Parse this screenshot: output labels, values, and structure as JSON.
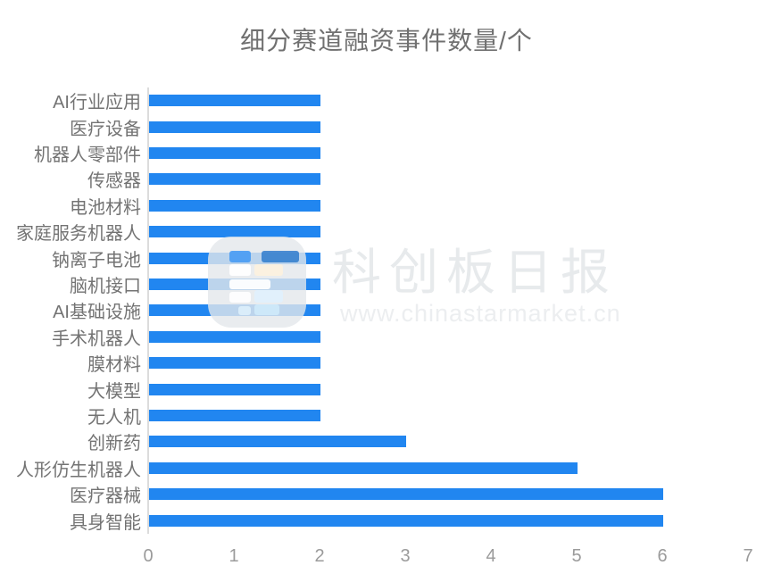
{
  "title": "细分赛道融资事件数量/个",
  "watermark": {
    "brand": "科创板日报",
    "url": "www.chinastarmarket.cn"
  },
  "chart_data": {
    "type": "bar",
    "orientation": "horizontal",
    "title": "细分赛道融资事件数量/个",
    "categories": [
      "AI行业应用",
      "医疗设备",
      "机器人零部件",
      "传感器",
      "电池材料",
      "家庭服务机器人",
      "钠离子电池",
      "脑机接口",
      "AI基础设施",
      "手术机器人",
      "膜材料",
      "大模型",
      "无人机",
      "创新药",
      "人形仿生机器人",
      "医疗器械",
      "具身智能"
    ],
    "values": [
      2,
      2,
      2,
      2,
      2,
      2,
      2,
      2,
      2,
      2,
      2,
      2,
      2,
      3,
      5,
      6,
      6
    ],
    "xlabel": "",
    "ylabel": "",
    "xlim": [
      0,
      7
    ],
    "x_ticks": [
      0,
      1,
      2,
      3,
      4,
      5,
      6,
      7
    ],
    "bar_color": "#2186f0",
    "axis_line_color": "#dcdcdc",
    "grid": false,
    "legend": false
  }
}
